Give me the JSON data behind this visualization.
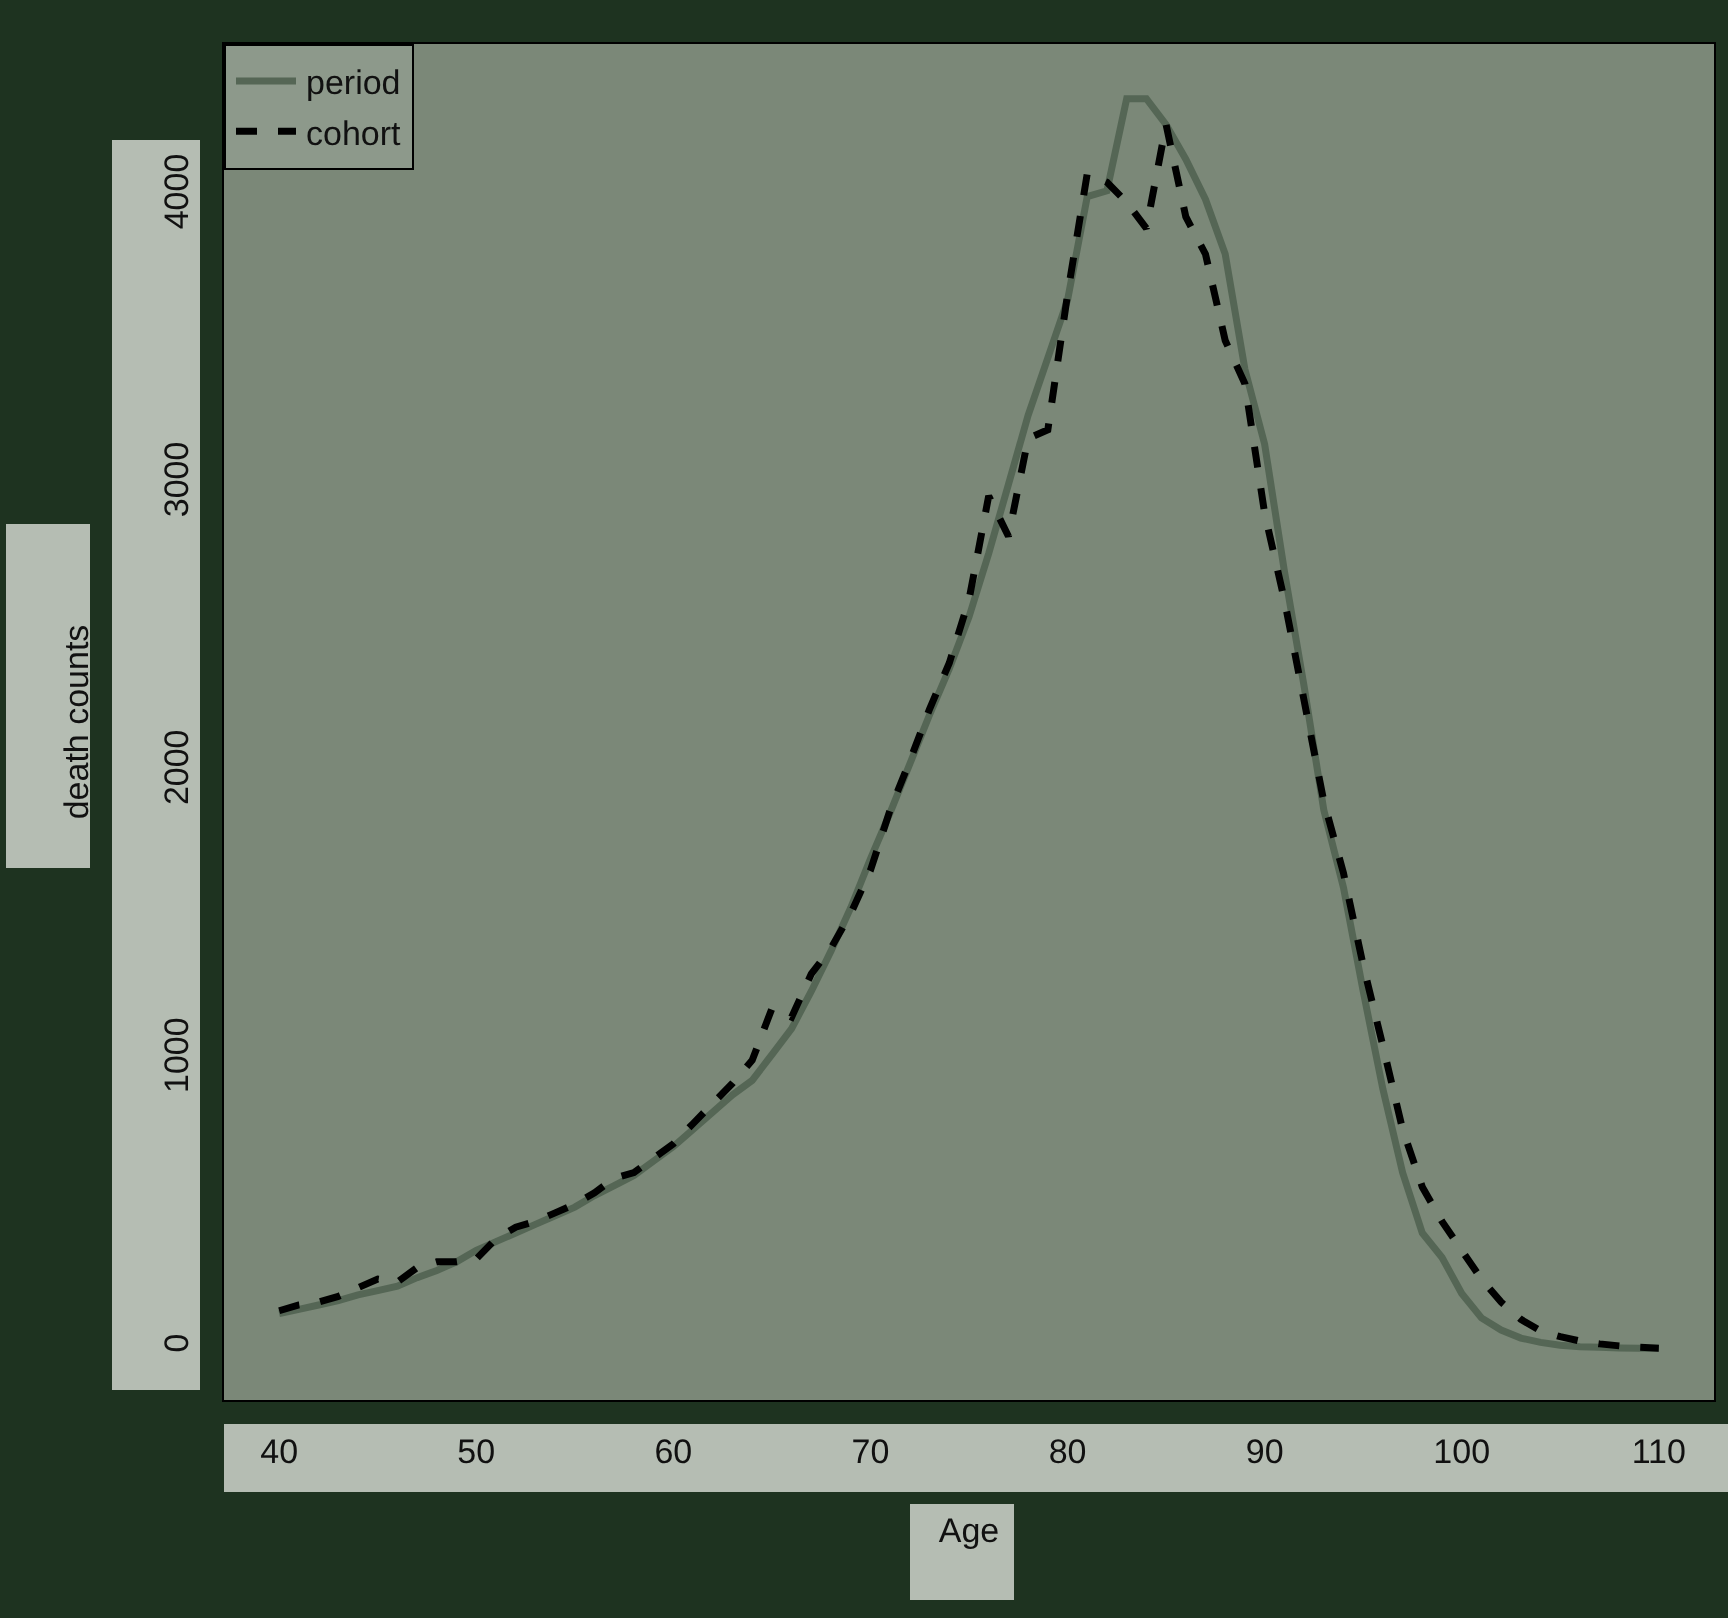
{
  "chart_data": {
    "type": "line",
    "xlabel": "Age",
    "ylabel": "death counts",
    "xlim": [
      37.2,
      112.8
    ],
    "xticks": [
      40,
      50,
      60,
      70,
      80,
      90,
      100,
      110
    ],
    "ylim": [
      -180,
      4530
    ],
    "yticks": [
      0,
      1000,
      2000,
      3000,
      4000
    ],
    "grid": false,
    "legend": "top left",
    "series": [
      {
        "name": "period",
        "color": "#556655",
        "line_style": "solid",
        "x": [
          40,
          41,
          42,
          43,
          44,
          45,
          46,
          47,
          48,
          49,
          50,
          51,
          52,
          53,
          54,
          55,
          56,
          57,
          58,
          59,
          60,
          61,
          62,
          63,
          64,
          65,
          66,
          67,
          68,
          69,
          70,
          71,
          72,
          73,
          74,
          75,
          76,
          77,
          78,
          79,
          80,
          81,
          82,
          83,
          84,
          85,
          86,
          87,
          88,
          89,
          90,
          91,
          92,
          93,
          94,
          95,
          96,
          97,
          98,
          99,
          100,
          101,
          102,
          103,
          104,
          105,
          106,
          107,
          108,
          109,
          110
        ],
        "values": [
          120,
          135,
          150,
          165,
          185,
          200,
          215,
          245,
          270,
          300,
          340,
          370,
          400,
          430,
          460,
          490,
          530,
          565,
          600,
          650,
          700,
          760,
          820,
          880,
          930,
          1020,
          1110,
          1240,
          1380,
          1530,
          1700,
          1860,
          2030,
          2200,
          2360,
          2540,
          2760,
          3000,
          3240,
          3440,
          3640,
          4000,
          4020,
          4340,
          4340,
          4250,
          4130,
          3990,
          3800,
          3400,
          3140,
          2700,
          2300,
          1870,
          1600,
          1240,
          900,
          610,
          400,
          315,
          190,
          105,
          63,
          35,
          20,
          10,
          5,
          3,
          1,
          0,
          0
        ]
      },
      {
        "name": "cohort",
        "color": "#000000",
        "line_style": "dashed",
        "x": [
          40,
          41,
          42,
          43,
          44,
          45,
          46,
          47,
          48,
          49,
          50,
          51,
          52,
          53,
          54,
          55,
          56,
          57,
          58,
          59,
          60,
          61,
          62,
          63,
          64,
          65,
          66,
          67,
          68,
          69,
          70,
          71,
          72,
          73,
          74,
          75,
          76,
          77,
          78,
          79,
          80,
          81,
          82,
          83,
          84,
          85,
          86,
          87,
          88,
          89,
          90,
          91,
          92,
          93,
          94,
          95,
          96,
          97,
          98,
          99,
          100,
          101,
          102,
          103,
          104,
          105,
          106,
          107,
          108,
          109,
          110
        ],
        "values": [
          130,
          150,
          160,
          180,
          210,
          240,
          230,
          280,
          300,
          300,
          310,
          380,
          420,
          440,
          470,
          500,
          540,
          590,
          610,
          660,
          710,
          780,
          850,
          920,
          1000,
          1180,
          1150,
          1300,
          1390,
          1510,
          1660,
          1870,
          2040,
          2220,
          2380,
          2600,
          2960,
          2820,
          3160,
          3190,
          3660,
          4080,
          4050,
          3980,
          3890,
          4250,
          3930,
          3800,
          3500,
          3350,
          2900,
          2600,
          2250,
          1900,
          1650,
          1330,
          1050,
          760,
          560,
          440,
          340,
          240,
          160,
          100,
          60,
          40,
          25,
          15,
          8,
          3,
          0
        ]
      }
    ]
  }
}
